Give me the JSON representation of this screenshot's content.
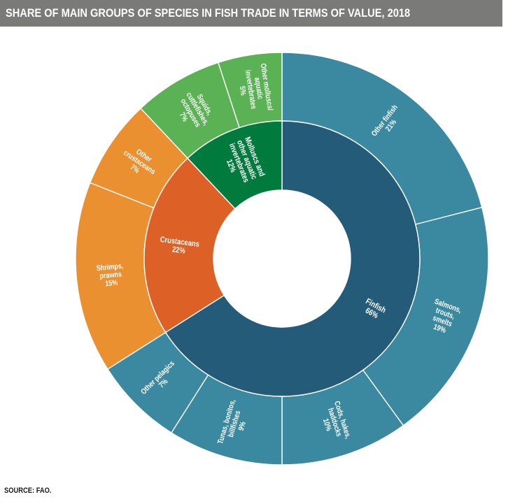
{
  "title": "SHARE OF MAIN GROUPS OF SPECIES IN FISH TRADE IN TERMS OF VALUE, 2018",
  "source": "SOURCE: FAO.",
  "chart_data": {
    "type": "pie",
    "subtype": "sunburst",
    "unit": "%",
    "inner_ring": [
      {
        "name": "Finfish",
        "value": 66,
        "color": "#245b79"
      },
      {
        "name": "Crustaceans",
        "value": 22,
        "color": "#dd6126"
      },
      {
        "name": "Molluscs and other aquatic invertebrates",
        "value": 12,
        "color": "#007a3d"
      }
    ],
    "outer_ring": [
      {
        "name": "Other finfish",
        "parent": "Finfish",
        "value": 21,
        "color": "#3b89a1"
      },
      {
        "name": "Salmons, trouts, smelts",
        "parent": "Finfish",
        "value": 19,
        "color": "#3b89a1"
      },
      {
        "name": "Cods, hakes, haddocks",
        "parent": "Finfish",
        "value": 10,
        "color": "#3b89a1"
      },
      {
        "name": "Tunas, bonitos, billfishes",
        "parent": "Finfish",
        "value": 9,
        "color": "#3b89a1"
      },
      {
        "name": "Other pelagics",
        "parent": "Finfish",
        "value": 7,
        "color": "#3b89a1"
      },
      {
        "name": "Shrimps, prawns",
        "parent": "Crustaceans",
        "value": 15,
        "color": "#ea9031"
      },
      {
        "name": "Other crustaceans",
        "parent": "Crustaceans",
        "value": 7,
        "color": "#ea9031"
      },
      {
        "name": "Squids, cuttlefishes, octopuses",
        "parent": "Molluscs and other aquatic invertebrates",
        "value": 7,
        "color": "#5bb254"
      },
      {
        "name": "Other molluscs/ aquatic invertebrates",
        "parent": "Molluscs and other aquatic invertebrates",
        "value": 5,
        "color": "#5bb254"
      }
    ],
    "labels": {
      "Finfish": {
        "lines": [
          "Finfish"
        ],
        "pct": "66%"
      },
      "Crustaceans": {
        "lines": [
          "Crustaceans"
        ],
        "pct": "22%"
      },
      "Molluscs and other aquatic invertebrates": {
        "lines": [
          "Molluscs and",
          "other aquatic",
          "invertebrates"
        ],
        "pct": "12%"
      },
      "Other finfish": {
        "lines": [
          "Other finfish"
        ],
        "pct": "21%"
      },
      "Salmons, trouts, smelts": {
        "lines": [
          "Salmons,",
          "trouts,",
          "smelts"
        ],
        "pct": "19%"
      },
      "Cods, hakes, haddocks": {
        "lines": [
          "Cods, hakes,",
          "haddocks"
        ],
        "pct": "10%"
      },
      "Tunas, bonitos, billfishes": {
        "lines": [
          "Tunas, bonitos,",
          "billfishes"
        ],
        "pct": "9%"
      },
      "Other pelagics": {
        "lines": [
          "Other pelagics"
        ],
        "pct": "7%"
      },
      "Shrimps, prawns": {
        "lines": [
          "Shrimps,",
          "prawns"
        ],
        "pct": "15%"
      },
      "Other crustaceans": {
        "lines": [
          "Other",
          "crustaceans"
        ],
        "pct": "7%"
      },
      "Squids, cuttlefishes, octopuses": {
        "lines": [
          "Squids,",
          "cuttlefishes,",
          "octopuses"
        ],
        "pct": "7%"
      },
      "Other molluscs/ aquatic invertebrates": {
        "lines": [
          "Other molluscs/",
          "aquatic",
          "invertebrates"
        ],
        "pct": "5%"
      }
    }
  }
}
